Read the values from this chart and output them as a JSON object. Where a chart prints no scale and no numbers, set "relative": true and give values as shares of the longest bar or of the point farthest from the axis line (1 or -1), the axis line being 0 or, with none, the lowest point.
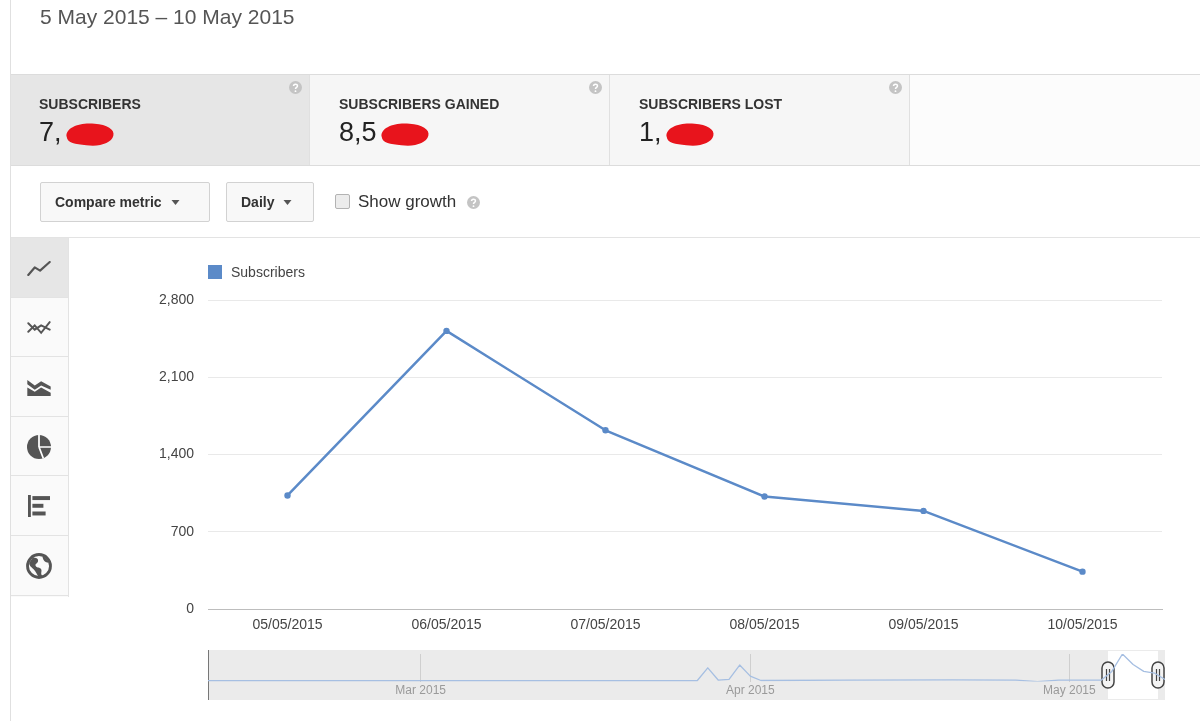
{
  "chart_data": [
    {
      "type": "line",
      "title": "5 May 2015 – 10 May 2015",
      "categories": [
        "05/05/2015",
        "06/05/2015",
        "07/05/2015",
        "08/05/2015",
        "09/05/2015",
        "10/05/2015"
      ],
      "series": [
        {
          "name": "Subscribers",
          "color": "#5b8ac8",
          "values": [
            1030,
            2520,
            1620,
            1020,
            890,
            340
          ]
        }
      ],
      "ylim": [
        0,
        2800
      ],
      "yticks": [
        0,
        700,
        {
          "value": 1400,
          "label": "1,400"
        },
        {
          "value": 2100,
          "label": "2,100"
        },
        {
          "value": 2800,
          "label": "2,800"
        }
      ],
      "grid": "y",
      "legend": "top left",
      "marker": "circle",
      "annotations": [
        "SUBSCRIBERS",
        "7,",
        "SUBSCRIBERS GAINED",
        "8,5",
        "SUBSCRIBERS LOST",
        "1,",
        "Compare metric",
        "Daily",
        "Show growth"
      ]
    },
    {
      "type": "line",
      "x": [
        "2015-02-09",
        "2015-03-27",
        "2015-03-28",
        "2015-03-29",
        "2015-03-30",
        "2015-03-31",
        "2015-04-01",
        "2015-04-02",
        "2015-04-10",
        "2015-04-20",
        "2015-04-26",
        "2015-04-28",
        "2015-04-30",
        "2015-05-04",
        "2015-05-05",
        "2015-05-06",
        "2015-05-07",
        "2015-05-08",
        "2015-05-09",
        "2015-05-10"
      ],
      "series": [
        {
          "color": "#a6bfe2",
          "values": [
            0.03,
            0.03,
            0.5,
            0.05,
            0.08,
            0.6,
            0.2,
            0.04,
            0.05,
            0.06,
            0.05,
            0,
            0.05,
            0.05,
            0.37,
            1,
            0.62,
            0.37,
            0.31,
            0.08
          ]
        }
      ],
      "relative": true,
      "xlim": [
        "2015-02-09",
        "2015-05-10"
      ],
      "xticks": [
        {
          "value": "2015-03-01",
          "label": "Mar 2015"
        },
        {
          "value": "2015-04-01",
          "label": "Apr 2015"
        },
        {
          "value": "2015-05-01",
          "label": "May 2015"
        }
      ],
      "grid": "x",
      "tick_labels": "x"
    }
  ]
}
